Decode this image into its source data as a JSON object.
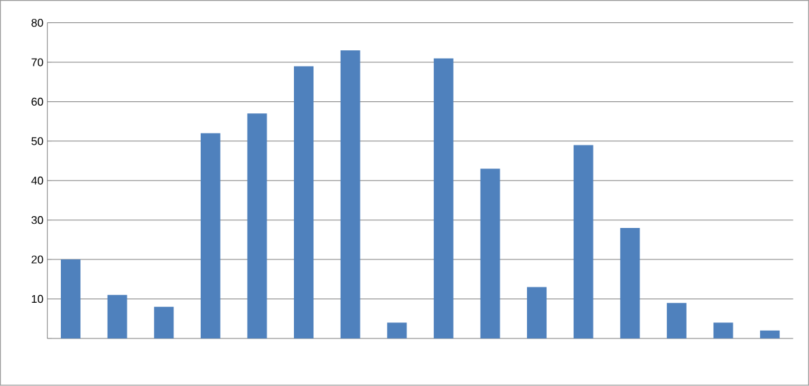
{
  "chart_data": {
    "type": "bar",
    "categories": [
      null,
      null,
      null,
      null,
      null,
      null,
      null,
      null,
      null,
      null,
      null,
      null,
      null,
      null,
      null,
      null
    ],
    "values": [
      20,
      11,
      8,
      52,
      57,
      69,
      73,
      4,
      71,
      43,
      13,
      49,
      28,
      9,
      4,
      2
    ],
    "color": "#4f81bd",
    "ylim": [
      0,
      80
    ],
    "yticks": [
      {
        "value": 0,
        "label": null
      },
      10,
      20,
      30,
      40,
      50,
      60,
      70,
      80
    ],
    "grid": "y"
  }
}
